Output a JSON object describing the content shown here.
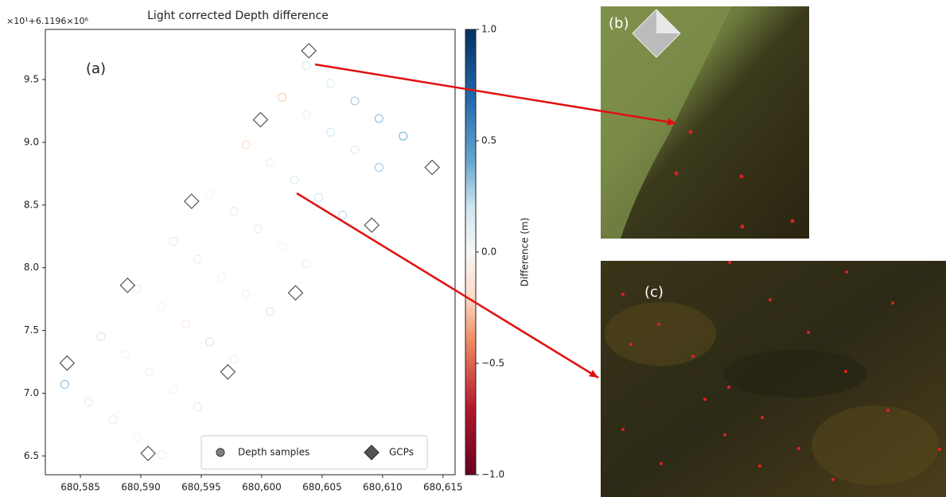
{
  "chart_data": {
    "type": "scatter",
    "title": "Light corrected Depth difference",
    "y_offset_text": "×10¹+6.1196×10⁶",
    "panel_label": "(a)",
    "xlim": [
      680582.1,
      680616.0
    ],
    "xticks": [
      {
        "value": 680585,
        "label": "680,585"
      },
      {
        "value": 680590,
        "label": "680,590"
      },
      {
        "value": 680595,
        "label": "680,595"
      },
      {
        "value": 680600,
        "label": "680,600"
      },
      {
        "value": 680605,
        "label": "680,605"
      },
      {
        "value": 680610,
        "label": "680,610"
      },
      {
        "value": 680615,
        "label": "680,615"
      }
    ],
    "ylim": [
      6.35,
      9.9
    ],
    "yticks": [
      6.5,
      {
        "value": 7.0,
        "label": "7.0"
      },
      7.5,
      {
        "value": 8.0,
        "label": "8.0"
      },
      8.5,
      {
        "value": 9.0,
        "label": "9.0"
      },
      9.5
    ],
    "legend": "lower right",
    "series": [
      {
        "name": "Depth samples",
        "marker": "circle",
        "color": "#808080",
        "x": [
          680583.7,
          680585.7,
          680587.7,
          680589.7,
          680591.7,
          680586.7,
          680588.7,
          680590.7,
          680592.7,
          680594.7,
          680589.7,
          680591.7,
          680593.7,
          680595.7,
          680597.7,
          680592.7,
          680594.7,
          680596.7,
          680598.7,
          680600.7,
          680595.7,
          680597.7,
          680599.7,
          680601.7,
          680603.7,
          680598.7,
          680600.7,
          680602.7,
          680604.7,
          680606.7,
          680601.7,
          680603.7,
          680605.7,
          680607.7,
          680609.7,
          680603.7,
          680605.7,
          680607.7,
          680609.7,
          680611.7
        ],
        "values": [
          7.07,
          6.93,
          6.79,
          6.65,
          6.51,
          7.45,
          7.31,
          7.17,
          7.03,
          6.89,
          7.83,
          7.69,
          7.55,
          7.41,
          7.27,
          8.21,
          8.07,
          7.93,
          7.79,
          7.65,
          8.59,
          8.45,
          8.31,
          8.17,
          8.03,
          8.98,
          8.84,
          8.7,
          8.56,
          8.42,
          9.36,
          9.22,
          9.08,
          8.94,
          8.8,
          9.61,
          9.47,
          9.33,
          9.19,
          9.05
        ],
        "c": [
          0.35,
          0.15,
          0.1,
          0.05,
          0.1,
          0.2,
          0.05,
          0.1,
          -0.05,
          0.15,
          0.1,
          0.05,
          -0.1,
          0.2,
          0.1,
          0.15,
          0.1,
          0.05,
          0.1,
          0.2,
          0.05,
          0.1,
          0.15,
          -0.05,
          0.1,
          -0.2,
          0.1,
          0.15,
          0.2,
          0.25,
          -0.25,
          0.1,
          0.2,
          0.15,
          0.3,
          0.2,
          0.15,
          0.3,
          0.35,
          0.4
        ]
      },
      {
        "name": "GCPs",
        "marker": "diamond",
        "color": "#555555",
        "x": [
          680603.9,
          680599.9,
          680594.2,
          680609.1,
          680588.9,
          680602.8,
          680583.9,
          680597.2,
          680590.6,
          680614.1
        ],
        "values": [
          9.73,
          9.18,
          8.53,
          8.34,
          7.86,
          7.8,
          7.24,
          7.17,
          6.52,
          8.8
        ]
      }
    ],
    "colorbar": {
      "colormap": "RdBu",
      "label": "Difference (m)",
      "ylim": [
        -1,
        1
      ],
      "yticks": [
        {
          "value": -1,
          "label": "−1.0"
        },
        {
          "value": -0.5,
          "label": "−0.5"
        },
        {
          "value": 0,
          "label": "0.0"
        },
        {
          "value": 0.5,
          "label": "0.5"
        },
        {
          "value": 1,
          "label": "1.0"
        }
      ]
    },
    "photo_labels": [
      "(b)",
      "(c)"
    ]
  }
}
